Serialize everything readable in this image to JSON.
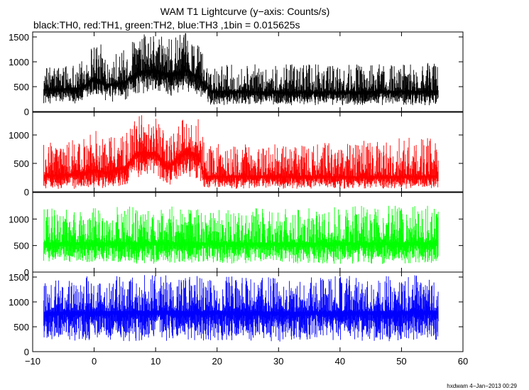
{
  "chart_data": {
    "type": "line",
    "title": "WAM T1 Lightcurve (y−axis: Counts/s)",
    "subtitle": "black:TH0, red:TH1, green:TH2, blue:TH3 ,1bin = 0.015625s",
    "xlabel": "",
    "ylabel": "",
    "xlim": [
      -10,
      60
    ],
    "x_ticks": [
      -10,
      0,
      10,
      20,
      30,
      40,
      50,
      60
    ],
    "x_tick_labels": [
      "−10",
      "0",
      "10",
      "20",
      "30",
      "40",
      "50",
      "60"
    ],
    "data_x_range": [
      -8.2,
      56.0
    ],
    "bin_seconds": 0.015625,
    "grid": false,
    "legend": "none",
    "panels": [
      {
        "name": "TH0",
        "color": "#000000",
        "ylim": [
          0,
          1600
        ],
        "y_ticks": [
          0,
          500,
          1000,
          1500
        ],
        "y_tick_labels": [
          "0",
          "500",
          "1000",
          "1500"
        ],
        "profile": [
          {
            "t": -8.2,
            "low": 150,
            "mean": 450,
            "high": 900
          },
          {
            "t": -2,
            "low": 150,
            "mean": 480,
            "high": 1050
          },
          {
            "t": 0,
            "low": 250,
            "mean": 700,
            "high": 1550
          },
          {
            "t": 2,
            "low": 200,
            "mean": 550,
            "high": 1200
          },
          {
            "t": 5,
            "low": 200,
            "mean": 600,
            "high": 1250
          },
          {
            "t": 7,
            "low": 350,
            "mean": 800,
            "high": 1550
          },
          {
            "t": 10,
            "low": 350,
            "mean": 850,
            "high": 1600
          },
          {
            "t": 12,
            "low": 300,
            "mean": 750,
            "high": 1450
          },
          {
            "t": 15,
            "low": 400,
            "mean": 850,
            "high": 1600
          },
          {
            "t": 17,
            "low": 300,
            "mean": 700,
            "high": 1350
          },
          {
            "t": 19,
            "low": 120,
            "mean": 420,
            "high": 950
          },
          {
            "t": 30,
            "low": 120,
            "mean": 400,
            "high": 950
          },
          {
            "t": 40,
            "low": 120,
            "mean": 400,
            "high": 950
          },
          {
            "t": 56,
            "low": 120,
            "mean": 420,
            "high": 1000
          }
        ]
      },
      {
        "name": "TH1",
        "color": "#ff0000",
        "ylim": [
          0,
          1400
        ],
        "y_ticks": [
          0,
          500,
          1000
        ],
        "y_tick_labels": [
          "0",
          "500",
          "1000"
        ],
        "profile": [
          {
            "t": -8.2,
            "low": 50,
            "mean": 300,
            "high": 850
          },
          {
            "t": -2,
            "low": 50,
            "mean": 320,
            "high": 950
          },
          {
            "t": 0,
            "low": 80,
            "mean": 400,
            "high": 1150
          },
          {
            "t": 2,
            "low": 50,
            "mean": 350,
            "high": 950
          },
          {
            "t": 5,
            "low": 100,
            "mean": 450,
            "high": 1050
          },
          {
            "t": 7,
            "low": 250,
            "mean": 700,
            "high": 1350
          },
          {
            "t": 10,
            "low": 250,
            "mean": 700,
            "high": 1400
          },
          {
            "t": 12,
            "low": 100,
            "mean": 450,
            "high": 1000
          },
          {
            "t": 15,
            "low": 250,
            "mean": 750,
            "high": 1400
          },
          {
            "t": 17,
            "low": 200,
            "mean": 650,
            "high": 1300
          },
          {
            "t": 18,
            "low": 50,
            "mean": 280,
            "high": 850
          },
          {
            "t": 30,
            "low": 50,
            "mean": 280,
            "high": 850
          },
          {
            "t": 45,
            "low": 50,
            "mean": 270,
            "high": 900
          },
          {
            "t": 56,
            "low": 50,
            "mean": 280,
            "high": 1000
          }
        ]
      },
      {
        "name": "TH2",
        "color": "#00ff00",
        "ylim": [
          0,
          1500
        ],
        "y_ticks": [
          0,
          500,
          1000
        ],
        "y_tick_labels": [
          "0",
          "500",
          "1000"
        ],
        "profile": [
          {
            "t": -8.2,
            "low": 150,
            "mean": 550,
            "high": 1200
          },
          {
            "t": 10,
            "low": 150,
            "mean": 560,
            "high": 1250
          },
          {
            "t": 30,
            "low": 150,
            "mean": 550,
            "high": 1200
          },
          {
            "t": 56,
            "low": 150,
            "mean": 560,
            "high": 1300
          }
        ]
      },
      {
        "name": "TH3",
        "color": "#0000ff",
        "ylim": [
          0,
          1600
        ],
        "y_ticks": [
          0,
          500,
          1000,
          1500
        ],
        "y_tick_labels": [
          "0",
          "500",
          "1000",
          "1500"
        ],
        "profile": [
          {
            "t": -8.2,
            "low": 200,
            "mean": 800,
            "high": 1500
          },
          {
            "t": 10,
            "low": 200,
            "mean": 820,
            "high": 1550
          },
          {
            "t": 30,
            "low": 200,
            "mean": 800,
            "high": 1500
          },
          {
            "t": 56,
            "low": 200,
            "mean": 810,
            "high": 1550
          }
        ]
      }
    ]
  },
  "footer": "hxdwam  4−Jan−2013 00:29"
}
